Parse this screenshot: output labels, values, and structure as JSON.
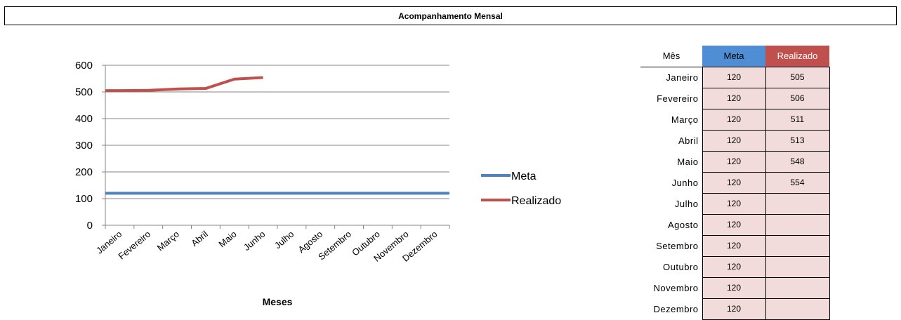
{
  "title": "Acompanhamento Mensal",
  "chart_data": {
    "type": "line",
    "categories": [
      "Janeiro",
      "Fevereiro",
      "Março",
      "Abril",
      "Maio",
      "Junho",
      "Julho",
      "Agosto",
      "Setembro",
      "Outubro",
      "Novembro",
      "Dezembro"
    ],
    "series": [
      {
        "name": "Meta",
        "color": "#4f81bd",
        "values": [
          120,
          120,
          120,
          120,
          120,
          120,
          120,
          120,
          120,
          120,
          120,
          120
        ]
      },
      {
        "name": "Realizado",
        "color": "#c0504d",
        "values": [
          505,
          506,
          511,
          513,
          548,
          554,
          null,
          null,
          null,
          null,
          null,
          null
        ]
      }
    ],
    "xlabel": "Meses",
    "ylabel": "",
    "ylim": [
      0,
      600
    ],
    "yticks": [
      "0",
      "100",
      "200",
      "300",
      "400",
      "500",
      "600"
    ],
    "grid": true,
    "legend": "right"
  },
  "table": {
    "headers": {
      "month": "Mês",
      "meta": "Meta",
      "realizado": "Realizado"
    },
    "rows": [
      {
        "month": "Janeiro",
        "meta": "120",
        "realizado": "505"
      },
      {
        "month": "Fevereiro",
        "meta": "120",
        "realizado": "506"
      },
      {
        "month": "Março",
        "meta": "120",
        "realizado": "511"
      },
      {
        "month": "Abril",
        "meta": "120",
        "realizado": "513"
      },
      {
        "month": "Maio",
        "meta": "120",
        "realizado": "548"
      },
      {
        "month": "Junho",
        "meta": "120",
        "realizado": "554"
      },
      {
        "month": "Julho",
        "meta": "120",
        "realizado": ""
      },
      {
        "month": "Agosto",
        "meta": "120",
        "realizado": ""
      },
      {
        "month": "Setembro",
        "meta": "120",
        "realizado": ""
      },
      {
        "month": "Outubro",
        "meta": "120",
        "realizado": ""
      },
      {
        "month": "Novembro",
        "meta": "120",
        "realizado": ""
      },
      {
        "month": "Dezembro",
        "meta": "120",
        "realizado": ""
      }
    ]
  }
}
